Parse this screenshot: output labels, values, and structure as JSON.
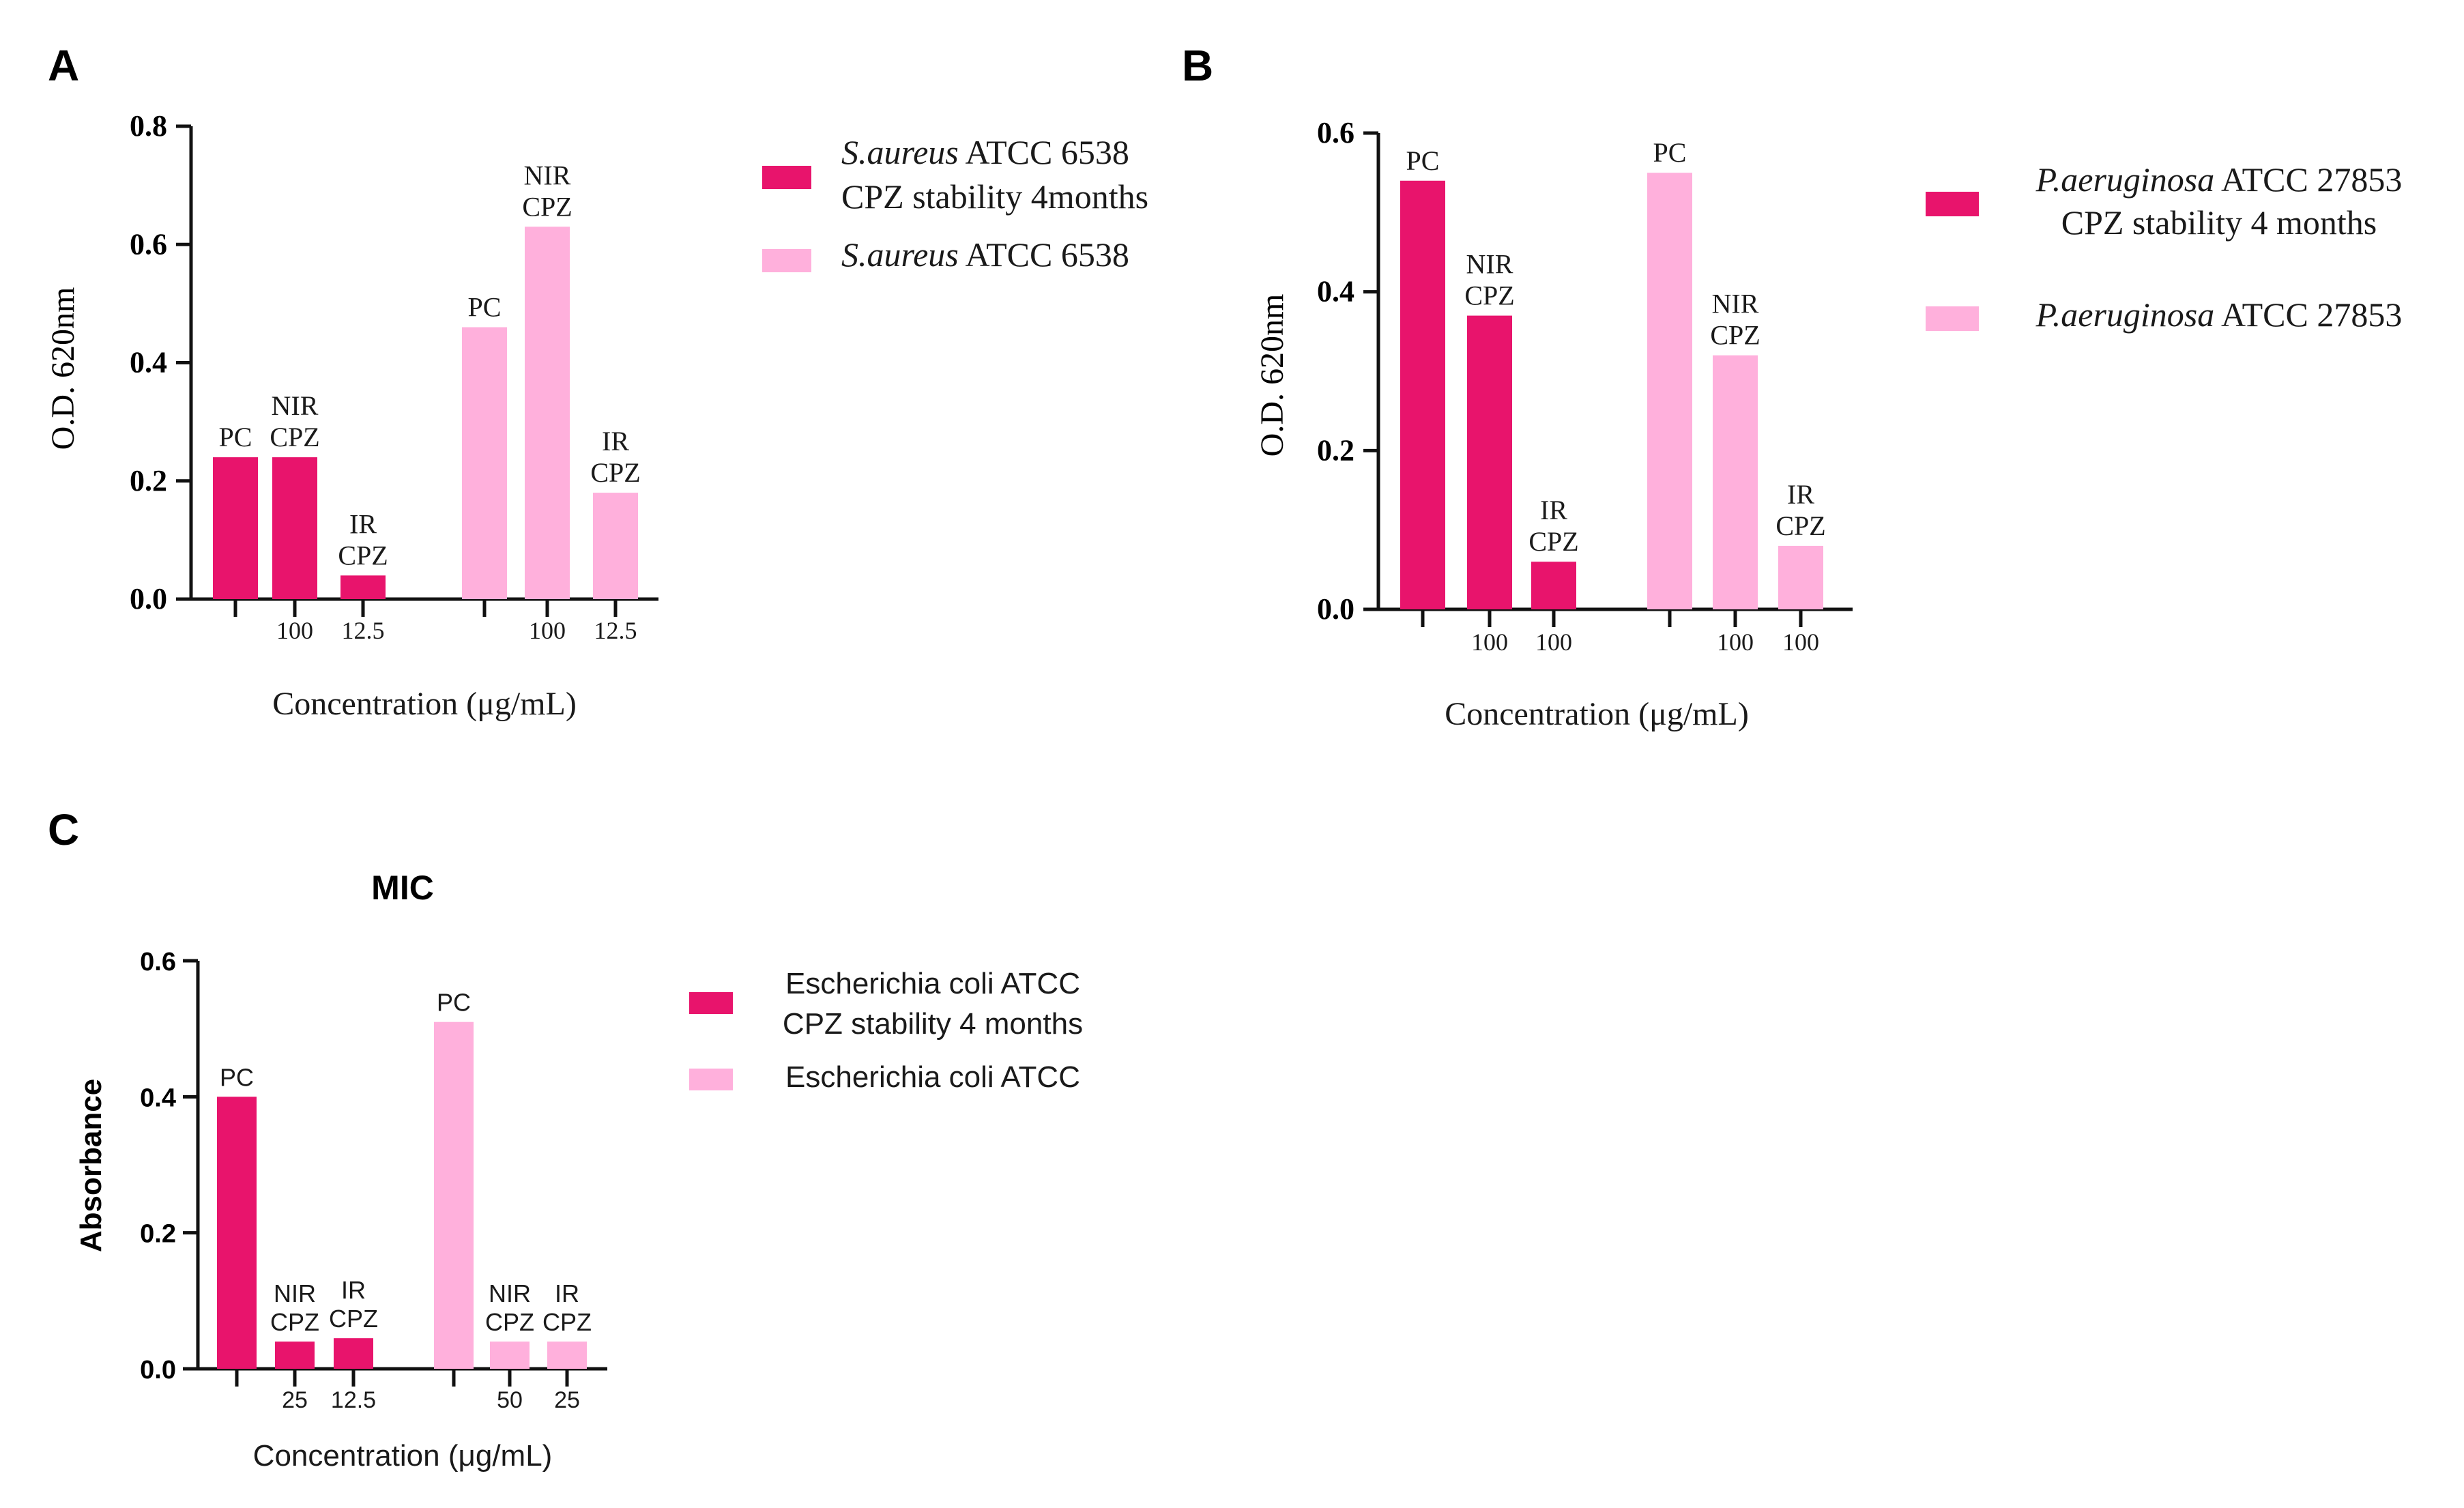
{
  "colors": {
    "dark": "#e8146c",
    "light": "#ffb0dc",
    "axis": "#111111",
    "text": "#1a1a1a"
  },
  "chart_data": [
    {
      "id": "A",
      "panel_label": "A",
      "type": "bar",
      "title": "",
      "ylabel": "O.D. 620nm",
      "xlabel": "Concentration (μg/mL)",
      "ylim": [
        0,
        0.8
      ],
      "yticks": [
        "0.0",
        "0.2",
        "0.4",
        "0.6",
        "0.8"
      ],
      "series": [
        {
          "name": "CPZ stability 4months",
          "color": "dark",
          "legend_lines": [
            {
              "italic": "S.aureus",
              "normal": " ATCC 6538"
            },
            {
              "italic": "",
              "normal": "CPZ stability 4months"
            }
          ],
          "bars": [
            {
              "label_lines": [
                "PC"
              ],
              "value": 0.24,
              "tick": ""
            },
            {
              "label_lines": [
                "NIR",
                "CPZ"
              ],
              "value": 0.24,
              "tick": "100"
            },
            {
              "label_lines": [
                "IR",
                "CPZ"
              ],
              "value": 0.04,
              "tick": "12.5"
            }
          ]
        },
        {
          "name": "S.aureus ATCC 6538",
          "color": "light",
          "legend_lines": [
            {
              "italic": "S.aureus",
              "normal": " ATCC 6538"
            }
          ],
          "bars": [
            {
              "label_lines": [
                "PC"
              ],
              "value": 0.46,
              "tick": ""
            },
            {
              "label_lines": [
                "NIR",
                "CPZ"
              ],
              "value": 0.63,
              "tick": "100"
            },
            {
              "label_lines": [
                "IR",
                "CPZ"
              ],
              "value": 0.18,
              "tick": "12.5"
            }
          ]
        }
      ]
    },
    {
      "id": "B",
      "panel_label": "B",
      "type": "bar",
      "title": "",
      "ylabel": "O.D. 620nm",
      "xlabel": "Concentration (μg/mL)",
      "ylim": [
        0,
        0.6
      ],
      "yticks": [
        "0.0",
        "0.2",
        "0.4",
        "0.6"
      ],
      "series": [
        {
          "name": "CPZ stability 4 months",
          "color": "dark",
          "legend_lines": [
            {
              "italic": "P.aeruginosa",
              "normal": " ATCC 27853"
            },
            {
              "italic": "",
              "normal": "CPZ stability 4 months"
            }
          ],
          "bars": [
            {
              "label_lines": [
                "PC"
              ],
              "value": 0.54,
              "tick": ""
            },
            {
              "label_lines": [
                "NIR",
                "CPZ"
              ],
              "value": 0.37,
              "tick": "100"
            },
            {
              "label_lines": [
                "IR",
                "CPZ"
              ],
              "value": 0.06,
              "tick": "100"
            }
          ]
        },
        {
          "name": "P.aeruginosa ATCC 27853",
          "color": "light",
          "legend_lines": [
            {
              "italic": "P.aeruginosa",
              "normal": " ATCC 27853"
            }
          ],
          "bars": [
            {
              "label_lines": [
                "PC"
              ],
              "value": 0.55,
              "tick": ""
            },
            {
              "label_lines": [
                "NIR",
                "CPZ"
              ],
              "value": 0.32,
              "tick": "100"
            },
            {
              "label_lines": [
                "IR",
                "CPZ"
              ],
              "value": 0.08,
              "tick": "100"
            }
          ]
        }
      ]
    },
    {
      "id": "C",
      "panel_label": "C",
      "type": "bar",
      "title": "MIC",
      "ylabel": "Absorbance",
      "xlabel": "Concentration (μg/mL)",
      "ylim": [
        0,
        0.6
      ],
      "yticks": [
        "0.0",
        "0.2",
        "0.4",
        "0.6"
      ],
      "series": [
        {
          "name": "Escherichia coli ATCC CPZ stability 4 months",
          "color": "dark",
          "legend_lines": [
            {
              "italic": "",
              "normal": "Escherichia coli ATCC"
            },
            {
              "italic": "",
              "normal": "CPZ stability 4 months"
            }
          ],
          "bars": [
            {
              "label_lines": [
                "PC"
              ],
              "value": 0.4,
              "tick": ""
            },
            {
              "label_lines": [
                "NIR",
                "CPZ"
              ],
              "value": 0.04,
              "tick": "25"
            },
            {
              "label_lines": [
                "IR",
                "CPZ"
              ],
              "value": 0.045,
              "tick": "12.5"
            }
          ]
        },
        {
          "name": "Escherichia coli ATCC",
          "color": "light",
          "legend_lines": [
            {
              "italic": "",
              "normal": "Escherichia coli ATCC"
            }
          ],
          "bars": [
            {
              "label_lines": [
                "PC"
              ],
              "value": 0.51,
              "tick": ""
            },
            {
              "label_lines": [
                "NIR",
                "CPZ"
              ],
              "value": 0.04,
              "tick": "50"
            },
            {
              "label_lines": [
                "IR",
                "CPZ"
              ],
              "value": 0.04,
              "tick": "25"
            }
          ]
        }
      ]
    }
  ]
}
